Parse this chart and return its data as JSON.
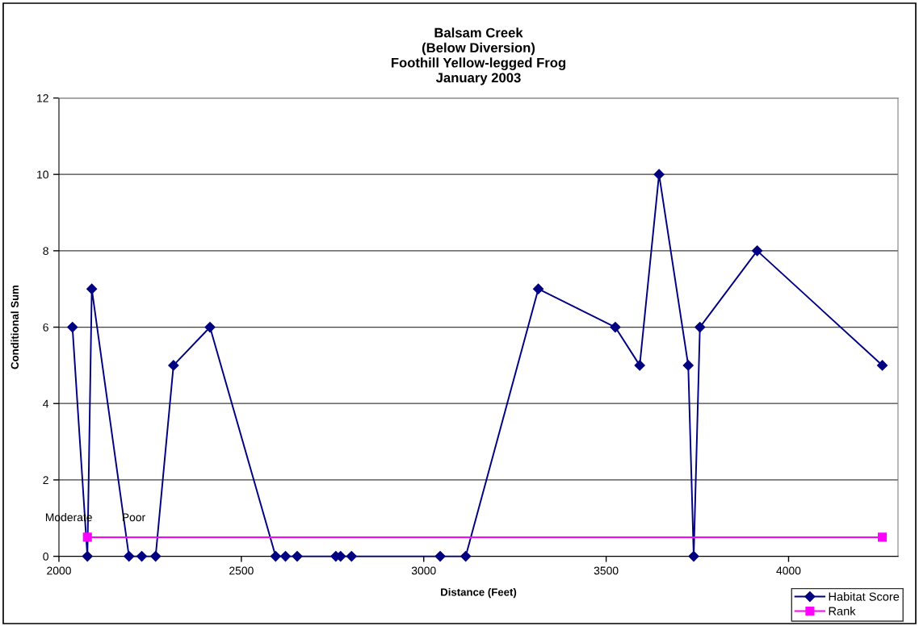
{
  "chart_data": {
    "type": "line",
    "title": "Balsam Creek\n(Below Diversion)\nFoothill Yellow-legged Frog\nJanuary 2003",
    "xlabel": "Distance (Feet)",
    "ylabel": "Conditional Sum",
    "series": [
      {
        "name": "Habitat Score",
        "color": "#000080",
        "marker": "diamond",
        "x": [
          2037,
          2078,
          2090,
          2192,
          2227,
          2265,
          2314,
          2414,
          2594,
          2621,
          2653,
          2759,
          2772,
          2802,
          3045,
          3115,
          3314,
          3525,
          3592,
          3645,
          3725,
          3740,
          3757,
          3914,
          4257
        ],
        "values": [
          6,
          0,
          7,
          0,
          0,
          0,
          5,
          6,
          0,
          0,
          0,
          0,
          0,
          0,
          0,
          0,
          7,
          6,
          5,
          10,
          5,
          0,
          6,
          8,
          5
        ]
      },
      {
        "name": "Rank",
        "color": "#ff00ff",
        "marker": "square",
        "x": [
          2078,
          4257
        ],
        "values": [
          0.5,
          0.5
        ]
      }
    ],
    "annotations": [
      "Moderate",
      "Poor"
    ],
    "xlim": [
      2000,
      4300
    ],
    "xticks": [
      2000,
      2500,
      3000,
      3500,
      4000
    ],
    "ylim": [
      0,
      12
    ],
    "yticks": [
      0,
      2,
      4,
      6,
      8,
      10,
      12
    ],
    "grid": "y",
    "legend": "bottom right",
    "line_style": "solid"
  }
}
